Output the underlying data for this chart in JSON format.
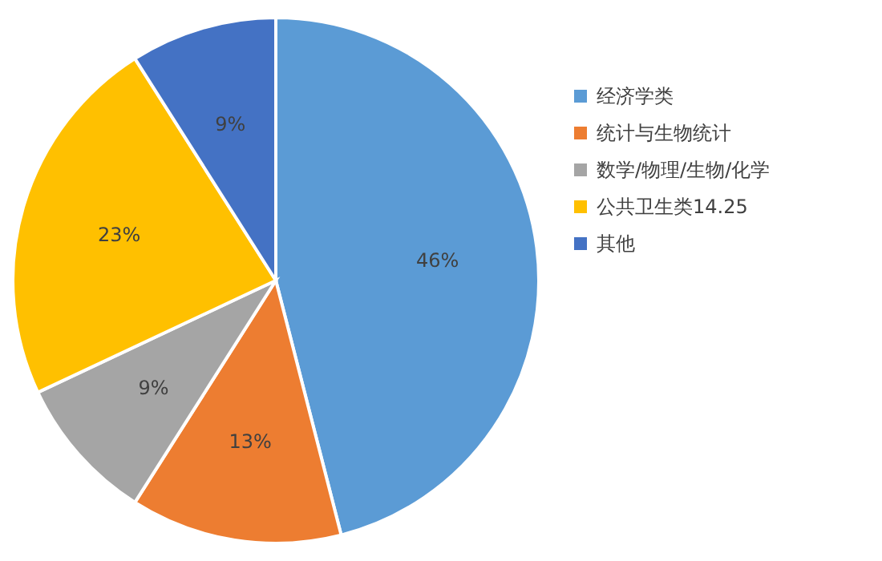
{
  "chart_data": {
    "type": "pie",
    "categories": [
      "经济学类",
      "统计与生物统计",
      "数学/物理/生物/化学",
      "公共卫生类14.25",
      "其他"
    ],
    "values": [
      46,
      13,
      9,
      23,
      9
    ],
    "colors": [
      "#5b9bd5",
      "#ed7d31",
      "#a5a5a5",
      "#ffc000",
      "#4472c4"
    ],
    "value_labels": [
      "46%",
      "13%",
      "9%",
      "23%",
      "9%"
    ],
    "legend": "right"
  }
}
